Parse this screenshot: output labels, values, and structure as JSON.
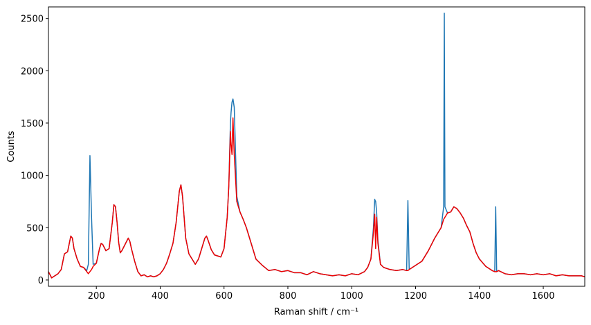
{
  "chart_data": {
    "type": "line",
    "x_label": "Raman shift / cm⁻¹",
    "y_label": "Counts",
    "xlim": [
      50,
      1730
    ],
    "ylim": [
      -60,
      2610
    ],
    "xticks": [
      200,
      400,
      600,
      800,
      1000,
      1200,
      1400,
      1600
    ],
    "yticks": [
      0,
      500,
      1000,
      1500,
      2000,
      2500
    ],
    "x": [
      50,
      60,
      70,
      80,
      90,
      100,
      110,
      120,
      125,
      130,
      140,
      150,
      160,
      170,
      175,
      180,
      185,
      190,
      200,
      210,
      215,
      220,
      230,
      240,
      250,
      255,
      260,
      265,
      270,
      275,
      280,
      290,
      300,
      305,
      310,
      320,
      330,
      340,
      350,
      360,
      370,
      380,
      390,
      400,
      410,
      420,
      430,
      440,
      450,
      460,
      465,
      470,
      475,
      480,
      490,
      500,
      510,
      520,
      530,
      540,
      545,
      550,
      560,
      570,
      580,
      590,
      600,
      610,
      615,
      620,
      622,
      625,
      628,
      632,
      640,
      650,
      660,
      670,
      680,
      690,
      700,
      720,
      740,
      760,
      780,
      800,
      820,
      840,
      860,
      880,
      900,
      920,
      940,
      960,
      980,
      1000,
      1020,
      1040,
      1050,
      1060,
      1068,
      1072,
      1075,
      1078,
      1082,
      1090,
      1100,
      1120,
      1140,
      1160,
      1172,
      1176,
      1180,
      1200,
      1220,
      1240,
      1260,
      1280,
      1288,
      1290,
      1292,
      1300,
      1310,
      1320,
      1330,
      1340,
      1350,
      1360,
      1370,
      1380,
      1390,
      1400,
      1420,
      1440,
      1448,
      1451,
      1454,
      1460,
      1480,
      1500,
      1520,
      1540,
      1560,
      1580,
      1600,
      1620,
      1640,
      1660,
      1680,
      1700,
      1720,
      1730
    ],
    "series": [
      {
        "color": "#1f77b4",
        "values": [
          80,
          20,
          40,
          60,
          100,
          250,
          270,
          420,
          400,
          300,
          200,
          130,
          120,
          90,
          150,
          1190,
          600,
          150,
          160,
          300,
          350,
          340,
          280,
          300,
          550,
          720,
          700,
          550,
          360,
          260,
          280,
          340,
          400,
          370,
          300,
          180,
          80,
          40,
          50,
          30,
          40,
          30,
          40,
          60,
          100,
          160,
          250,
          350,
          550,
          850,
          910,
          800,
          600,
          400,
          250,
          200,
          150,
          200,
          300,
          400,
          420,
          380,
          290,
          240,
          230,
          220,
          300,
          600,
          900,
          1500,
          1600,
          1700,
          1730,
          1650,
          800,
          650,
          580,
          500,
          400,
          300,
          200,
          140,
          90,
          100,
          80,
          90,
          70,
          70,
          50,
          80,
          60,
          50,
          40,
          50,
          40,
          60,
          50,
          80,
          120,
          200,
          500,
          770,
          750,
          650,
          380,
          150,
          120,
          100,
          90,
          100,
          90,
          760,
          100,
          140,
          180,
          280,
          400,
          500,
          700,
          2550,
          700,
          640,
          650,
          700,
          680,
          640,
          590,
          520,
          460,
          350,
          260,
          200,
          130,
          90,
          80,
          700,
          80,
          90,
          60,
          50,
          60,
          60,
          50,
          60,
          50,
          60,
          40,
          50,
          40,
          40,
          40,
          30
        ]
      },
      {
        "color": "#ee0000",
        "values": [
          80,
          20,
          40,
          60,
          100,
          250,
          270,
          420,
          400,
          300,
          200,
          130,
          120,
          80,
          60,
          80,
          100,
          130,
          160,
          300,
          350,
          340,
          280,
          300,
          550,
          720,
          700,
          550,
          360,
          260,
          280,
          340,
          400,
          370,
          300,
          180,
          80,
          40,
          50,
          30,
          40,
          30,
          40,
          60,
          100,
          160,
          250,
          350,
          550,
          850,
          910,
          800,
          600,
          400,
          250,
          200,
          150,
          200,
          300,
          400,
          420,
          380,
          290,
          240,
          230,
          220,
          300,
          600,
          900,
          1420,
          1300,
          1200,
          1550,
          1200,
          750,
          650,
          580,
          500,
          400,
          300,
          200,
          140,
          90,
          100,
          80,
          90,
          70,
          70,
          50,
          80,
          60,
          50,
          40,
          50,
          40,
          60,
          50,
          80,
          120,
          200,
          450,
          630,
          300,
          600,
          350,
          150,
          120,
          100,
          90,
          100,
          90,
          90,
          100,
          140,
          180,
          280,
          400,
          500,
          580,
          590,
          600,
          640,
          650,
          700,
          680,
          640,
          590,
          520,
          460,
          350,
          260,
          200,
          130,
          90,
          80,
          80,
          80,
          90,
          60,
          50,
          60,
          60,
          50,
          60,
          50,
          60,
          40,
          50,
          40,
          40,
          40,
          30
        ]
      }
    ]
  }
}
